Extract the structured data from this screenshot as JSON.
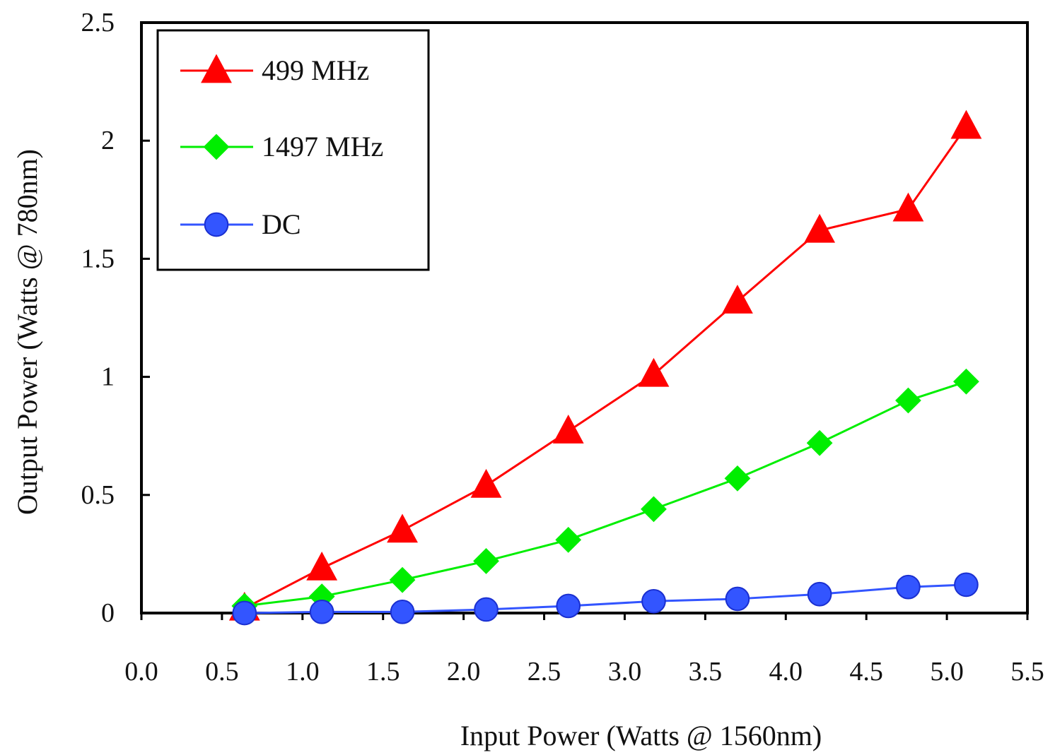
{
  "chart_data": {
    "type": "line",
    "title": "",
    "xlabel": "Input Power (Watts @ 1560nm)",
    "ylabel": "Output Power (Watts @ 780nm)",
    "xlim": [
      0.0,
      5.5
    ],
    "ylim": [
      0,
      2.5
    ],
    "x_ticks": [
      "0.0",
      "0.5",
      "1.0",
      "1.5",
      "2.0",
      "2.5",
      "3.0",
      "3.5",
      "4.0",
      "4.5",
      "5.0",
      "5.5"
    ],
    "y_ticks": [
      "0",
      "0.5",
      "1",
      "1.5",
      "2",
      "2.5"
    ],
    "grid": false,
    "legend_position": "top-left",
    "series": [
      {
        "name": "499 MHz",
        "color": "#ff0000",
        "marker": "triangle",
        "x": [
          0.64,
          1.12,
          1.62,
          2.14,
          2.65,
          3.18,
          3.7,
          4.21,
          4.76,
          5.12
        ],
        "y": [
          0.02,
          0.19,
          0.35,
          0.54,
          0.77,
          1.01,
          1.32,
          1.62,
          1.71,
          2.06
        ]
      },
      {
        "name": "1497 MHz",
        "color": "#00ee00",
        "marker": "diamond",
        "x": [
          0.64,
          1.12,
          1.62,
          2.14,
          2.65,
          3.18,
          3.7,
          4.21,
          4.76,
          5.12
        ],
        "y": [
          0.03,
          0.07,
          0.14,
          0.22,
          0.31,
          0.44,
          0.57,
          0.72,
          0.9,
          0.98
        ]
      },
      {
        "name": "DC",
        "color": "#3355ff",
        "marker": "circle",
        "x": [
          0.64,
          1.12,
          1.62,
          2.14,
          2.65,
          3.18,
          3.7,
          4.21,
          4.76,
          5.12
        ],
        "y": [
          0.0,
          0.005,
          0.005,
          0.015,
          0.03,
          0.05,
          0.06,
          0.08,
          0.11,
          0.12
        ]
      }
    ]
  }
}
